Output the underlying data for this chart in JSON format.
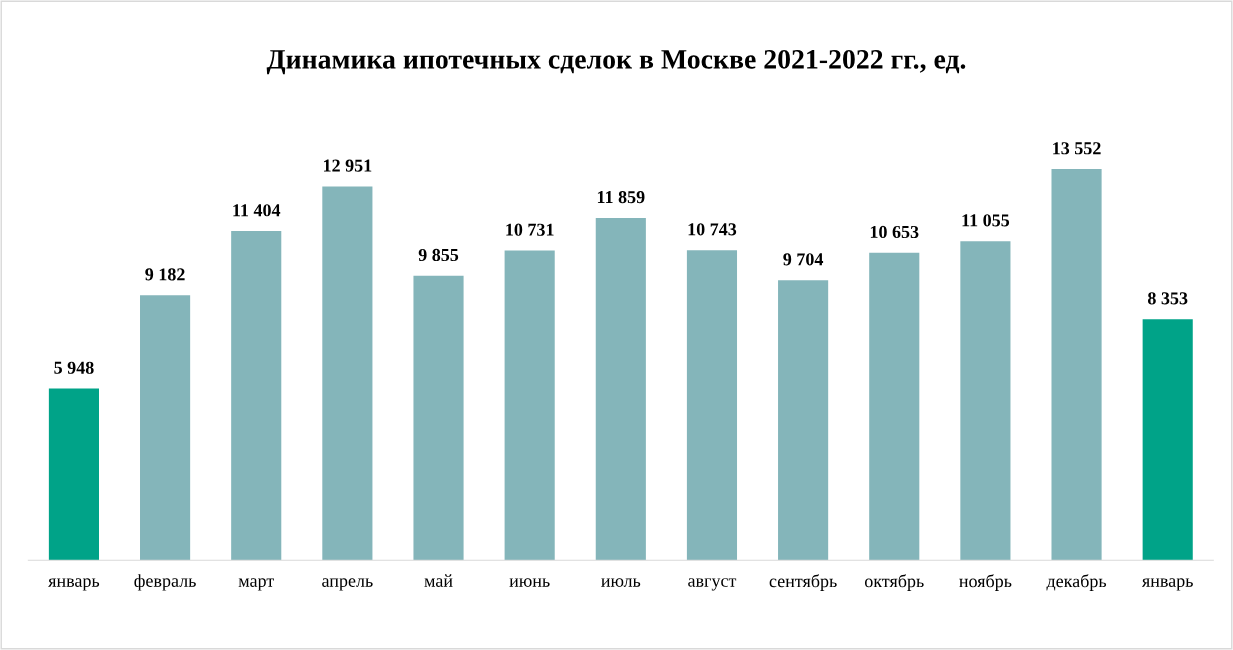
{
  "chart_data": {
    "type": "bar",
    "title": "Динамика ипотечных сделок в Москве 2021-2022 гг., ед.",
    "categories": [
      "январь",
      "февраль",
      "март",
      "апрель",
      "май",
      "июнь",
      "июль",
      "август",
      "сентябрь",
      "октябрь",
      "ноябрь",
      "декабрь",
      "январь"
    ],
    "values": [
      5948,
      9182,
      11404,
      12951,
      9855,
      10731,
      11859,
      10743,
      9704,
      10653,
      11055,
      13552,
      8353
    ],
    "value_labels": [
      "5 948",
      "9 182",
      "11 404",
      "12 951",
      "9 855",
      "10 731",
      "11 859",
      "10 743",
      "9 704",
      "10 653",
      "11 055",
      "13 552",
      "8 353"
    ],
    "colors": [
      "#00a388",
      "#84b5ba",
      "#84b5ba",
      "#84b5ba",
      "#84b5ba",
      "#84b5ba",
      "#84b5ba",
      "#84b5ba",
      "#84b5ba",
      "#84b5ba",
      "#84b5ba",
      "#84b5ba",
      "#00a388"
    ],
    "grid": false,
    "legend": false
  }
}
